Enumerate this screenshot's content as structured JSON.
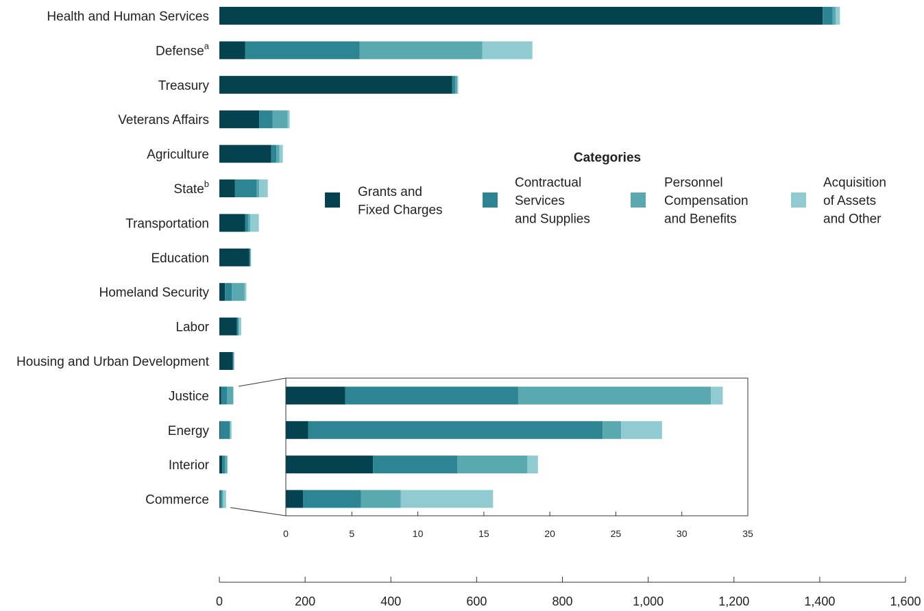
{
  "colors": {
    "grants": "#05424f",
    "contractual": "#2d8593",
    "personnel": "#5aa8b0",
    "acquisition": "#8fcbd0"
  },
  "legend": {
    "title": "Categories",
    "items": [
      {
        "key": "grants",
        "lines": [
          "Grants and",
          "Fixed Charges"
        ]
      },
      {
        "key": "contractual",
        "lines": [
          "Contractual",
          "Services",
          "and Supplies"
        ]
      },
      {
        "key": "personnel",
        "lines": [
          "Personnel",
          "Compensation",
          "and Benefits"
        ]
      },
      {
        "key": "acquisition",
        "lines": [
          "Acquisition",
          "of Assets",
          "and Other"
        ]
      }
    ]
  },
  "chart_data": [
    {
      "type": "bar",
      "orientation": "horizontal",
      "stacked": true,
      "categories": [
        {
          "label": "Health and Human Services",
          "sup": ""
        },
        {
          "label": "Defense",
          "sup": "a"
        },
        {
          "label": "Treasury",
          "sup": ""
        },
        {
          "label": "Veterans Affairs",
          "sup": ""
        },
        {
          "label": "Agriculture",
          "sup": ""
        },
        {
          "label": "State",
          "sup": "b"
        },
        {
          "label": "Transportation",
          "sup": ""
        },
        {
          "label": "Education",
          "sup": ""
        },
        {
          "label": "Homeland Security",
          "sup": ""
        },
        {
          "label": "Labor",
          "sup": ""
        },
        {
          "label": "Housing and Urban Development",
          "sup": ""
        },
        {
          "label": "Justice",
          "sup": ""
        },
        {
          "label": "Energy",
          "sup": ""
        },
        {
          "label": "Interior",
          "sup": ""
        },
        {
          "label": "Commerce",
          "sup": ""
        }
      ],
      "series": [
        {
          "key": "grants",
          "values": [
            1407,
            60,
            543,
            93,
            121,
            36,
            60,
            70,
            13,
            41,
            31,
            4.5,
            1.7,
            6.6,
            1.3
          ]
        },
        {
          "key": "contractual",
          "values": [
            23,
            267,
            7,
            31,
            12,
            51,
            7,
            2,
            16,
            3,
            2,
            13.1,
            22.3,
            6.4,
            4.4
          ]
        },
        {
          "key": "personnel",
          "values": [
            7,
            286,
            5,
            35,
            7,
            6,
            5,
            1,
            30,
            2,
            1,
            14.6,
            1.4,
            5.3,
            3.0
          ]
        },
        {
          "key": "acquisition",
          "values": [
            10,
            117,
            2,
            5,
            8,
            20,
            20,
            1,
            4,
            5,
            1,
            0.9,
            3.1,
            0.8,
            7.0
          ]
        }
      ],
      "xlim": [
        0,
        1600
      ],
      "xticks": [
        "0",
        "200",
        "400",
        "600",
        "800",
        "1,000",
        "1,200",
        "1,400",
        "1,600"
      ]
    },
    {
      "type": "bar",
      "orientation": "horizontal",
      "stacked": true,
      "inset_of": [
        "Justice",
        "Energy",
        "Interior",
        "Commerce"
      ],
      "series": [
        {
          "key": "grants",
          "values": [
            4.5,
            1.7,
            6.6,
            1.3
          ]
        },
        {
          "key": "contractual",
          "values": [
            13.1,
            22.3,
            6.4,
            4.4
          ]
        },
        {
          "key": "personnel",
          "values": [
            14.6,
            1.4,
            5.3,
            3.0
          ]
        },
        {
          "key": "acquisition",
          "values": [
            0.9,
            3.1,
            0.8,
            7.0
          ]
        }
      ],
      "xlim": [
        0,
        35
      ],
      "xticks": [
        "0",
        "5",
        "10",
        "15",
        "20",
        "25",
        "30",
        "35"
      ]
    }
  ]
}
